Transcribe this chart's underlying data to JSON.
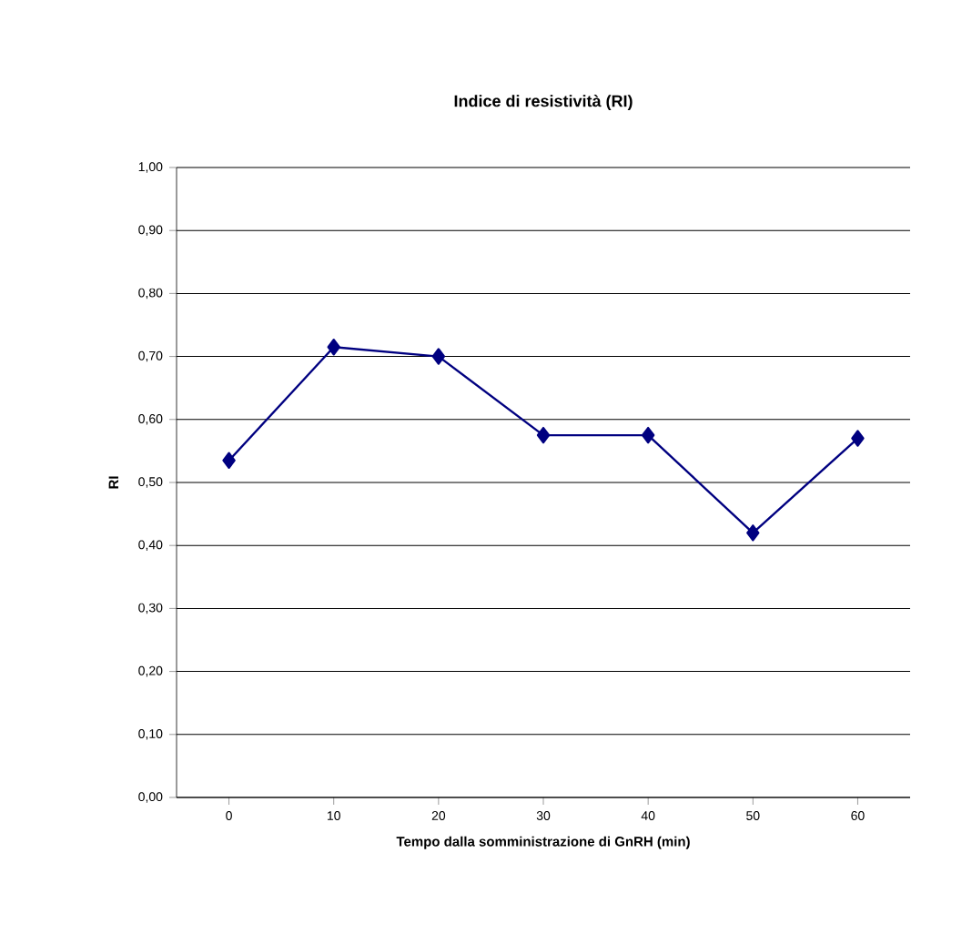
{
  "chart_data": {
    "type": "line",
    "title": "Indice di resistività (RI)",
    "xlabel": "Tempo dalla somministrazione di GnRH (min)",
    "ylabel": "RI",
    "categories": [
      "0",
      "10",
      "20",
      "30",
      "40",
      "50",
      "60"
    ],
    "series": [
      {
        "color": "#000080",
        "values": [
          0.535,
          0.715,
          0.7,
          0.575,
          0.575,
          0.42,
          0.57
        ]
      }
    ],
    "ylim": [
      0,
      1
    ],
    "yticks": [
      {
        "value": 0,
        "label": "0,00"
      },
      {
        "value": 0.1,
        "label": "0,10"
      },
      {
        "value": 0.2,
        "label": "0,20"
      },
      {
        "value": 0.3,
        "label": "0,30"
      },
      {
        "value": 0.4,
        "label": "0,40"
      },
      {
        "value": 0.5,
        "label": "0,50"
      },
      {
        "value": 0.6,
        "label": "0,60"
      },
      {
        "value": 0.7,
        "label": "0,70"
      },
      {
        "value": 0.8,
        "label": "0,80"
      },
      {
        "value": 0.9,
        "label": "0,90"
      },
      {
        "value": 1,
        "label": "1,00"
      }
    ],
    "grid": "y",
    "marker": "diamond",
    "line_style": "solid",
    "legend": false
  }
}
